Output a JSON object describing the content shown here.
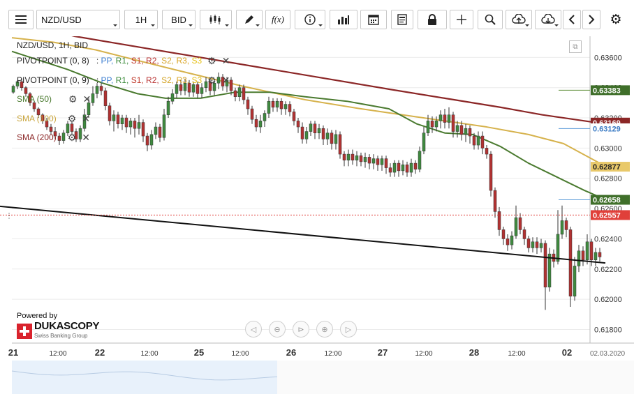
{
  "toolbar": {
    "instrument": "NZD/USD",
    "timeframe": "1H",
    "side": "BID",
    "fx_label": "f(x)"
  },
  "legend": {
    "title": "NZD/USD, 1H, BID",
    "pivot1_name": "PIVOTPOINT (0, 8)",
    "pivot2_name": "PIVOTPOINT (0, 9)",
    "pivot_sep": ":",
    "pivot_levels": [
      "PP,",
      "R1,",
      "S1,",
      "R2,",
      "S2,",
      "R3,",
      "S3"
    ],
    "sma50": "SMA (50)",
    "sma100": "SMA (100)",
    "sma200": "SMA (200)"
  },
  "branding": {
    "powered_by": "Powered by",
    "logo": "DUKASCOPY",
    "logo_sub": "Swiss Banking Group"
  },
  "colors": {
    "sma50": "#4a7a2f",
    "sma100": "#d6b24c",
    "sma200": "#8b2626",
    "bull": "#3f8a3f",
    "bear": "#b23232",
    "price": "#e0403a",
    "trend": "#111111",
    "blueline": "#5a9ad8"
  },
  "chart_data": {
    "type": "candlestick",
    "instrument": "NZD/USD",
    "timeframe": "1H",
    "side": "BID",
    "y_axis": {
      "ticks": [
        "0.63600",
        "0.63400",
        "0.63200",
        "0.63000",
        "0.62800",
        "0.62600",
        "0.62400",
        "0.62200",
        "0.62000",
        "0.61800"
      ],
      "ylim": [
        0.6171,
        0.6374
      ]
    },
    "x_axis": {
      "labels": [
        "21",
        "12:00",
        "22",
        "12:00",
        "25",
        "12:00",
        "26",
        "12:00",
        "27",
        "12:00",
        "28",
        "12:00",
        "02",
        "02.03.2020"
      ]
    },
    "price_tags": [
      {
        "label": "0.63383",
        "value": 0.63383,
        "series": "SMA / pivot level"
      },
      {
        "label": "0.63169",
        "value": 0.63169,
        "series": "SMA (200)"
      },
      {
        "label": "0.63129",
        "value": 0.63129,
        "series": "pivot"
      },
      {
        "label": "0.62877",
        "value": 0.62877,
        "series": "SMA (100)"
      },
      {
        "label": "0.62658",
        "value": 0.62658,
        "series": "SMA (50)"
      },
      {
        "label": "0.62557",
        "value": 0.62557,
        "series": "current price"
      }
    ],
    "sma200": [
      [
        0,
        0.6384
      ],
      [
        90,
        0.6374
      ],
      [
        180,
        0.6367
      ],
      [
        270,
        0.636
      ],
      [
        360,
        0.6353
      ],
      [
        450,
        0.6346
      ],
      [
        540,
        0.6339
      ],
      [
        620,
        0.6333
      ],
      [
        700,
        0.6327
      ],
      [
        760,
        0.6322
      ],
      [
        850,
        0.6316
      ]
    ],
    "sma100": [
      [
        0,
        0.6373
      ],
      [
        60,
        0.637
      ],
      [
        120,
        0.6365
      ],
      [
        180,
        0.6358
      ],
      [
        250,
        0.635
      ],
      [
        330,
        0.6341
      ],
      [
        420,
        0.6332
      ],
      [
        500,
        0.6326
      ],
      [
        560,
        0.6322
      ],
      [
        620,
        0.6318
      ],
      [
        680,
        0.6314
      ],
      [
        740,
        0.6309
      ],
      [
        790,
        0.6303
      ],
      [
        850,
        0.6288
      ]
    ],
    "sma50": [
      [
        0,
        0.6364
      ],
      [
        40,
        0.6358
      ],
      [
        80,
        0.6352
      ],
      [
        130,
        0.6343
      ],
      [
        180,
        0.6336
      ],
      [
        220,
        0.6333
      ],
      [
        270,
        0.6333
      ],
      [
        320,
        0.6337
      ],
      [
        370,
        0.6337
      ],
      [
        420,
        0.6334
      ],
      [
        480,
        0.6331
      ],
      [
        540,
        0.6326
      ],
      [
        580,
        0.6316
      ],
      [
        620,
        0.631
      ],
      [
        660,
        0.6309
      ],
      [
        700,
        0.6301
      ],
      [
        740,
        0.629
      ],
      [
        780,
        0.6281
      ],
      [
        820,
        0.6272
      ],
      [
        850,
        0.6266
      ]
    ],
    "trendline": [
      [
        0,
        0.62615
      ],
      [
        850,
        0.6224
      ]
    ],
    "current_price": 0.62557,
    "candles": [
      [
        0,
        0.6337,
        0.6341,
        0.6342,
        0.6336
      ],
      [
        6,
        0.6341,
        0.6344,
        0.6345,
        0.6339
      ],
      [
        12,
        0.6344,
        0.634,
        0.6346,
        0.6338
      ],
      [
        18,
        0.634,
        0.6336,
        0.6341,
        0.6334
      ],
      [
        24,
        0.6336,
        0.633,
        0.6337,
        0.6328
      ],
      [
        30,
        0.633,
        0.6326,
        0.6331,
        0.6324
      ],
      [
        36,
        0.6326,
        0.6322,
        0.6327,
        0.632
      ],
      [
        42,
        0.6322,
        0.6318,
        0.6323,
        0.6316
      ],
      [
        48,
        0.6318,
        0.6314,
        0.632,
        0.6312
      ],
      [
        54,
        0.6314,
        0.6311,
        0.6316,
        0.6309
      ],
      [
        60,
        0.6311,
        0.6308,
        0.6314,
        0.6306
      ],
      [
        66,
        0.6308,
        0.6305,
        0.631,
        0.6302
      ],
      [
        72,
        0.6305,
        0.631,
        0.6312,
        0.6303
      ],
      [
        78,
        0.631,
        0.6316,
        0.6318,
        0.6308
      ],
      [
        84,
        0.6316,
        0.6311,
        0.6318,
        0.6309
      ],
      [
        90,
        0.6311,
        0.6306,
        0.6313,
        0.6304
      ],
      [
        96,
        0.6306,
        0.6313,
        0.6315,
        0.6304
      ],
      [
        102,
        0.6313,
        0.6322,
        0.6326,
        0.6311
      ],
      [
        108,
        0.6322,
        0.633,
        0.6333,
        0.632
      ],
      [
        114,
        0.633,
        0.6336,
        0.6341,
        0.6328
      ],
      [
        120,
        0.6336,
        0.6341,
        0.6343,
        0.6333
      ],
      [
        126,
        0.6341,
        0.6338,
        0.6343,
        0.6335
      ],
      [
        132,
        0.6338,
        0.6328,
        0.634,
        0.6325
      ],
      [
        138,
        0.6328,
        0.6318,
        0.633,
        0.6315
      ],
      [
        144,
        0.6318,
        0.6322,
        0.6325,
        0.6311
      ],
      [
        150,
        0.6322,
        0.6316,
        0.6324,
        0.6313
      ],
      [
        156,
        0.6316,
        0.632,
        0.6322,
        0.6312
      ],
      [
        162,
        0.632,
        0.6314,
        0.6322,
        0.631
      ],
      [
        168,
        0.6314,
        0.6318,
        0.632,
        0.6309
      ],
      [
        174,
        0.6318,
        0.6313,
        0.632,
        0.6307
      ],
      [
        180,
        0.6313,
        0.6317,
        0.6322,
        0.6309
      ],
      [
        186,
        0.6317,
        0.6308,
        0.6319,
        0.6304
      ],
      [
        192,
        0.6308,
        0.6302,
        0.631,
        0.6298
      ],
      [
        198,
        0.6302,
        0.6309,
        0.6312,
        0.6299
      ],
      [
        204,
        0.6309,
        0.6314,
        0.6317,
        0.6306
      ],
      [
        210,
        0.6314,
        0.6307,
        0.6316,
        0.6304
      ],
      [
        216,
        0.6307,
        0.6322,
        0.6326,
        0.6305
      ],
      [
        222,
        0.6322,
        0.6331,
        0.6334,
        0.632
      ],
      [
        228,
        0.6331,
        0.6336,
        0.6339,
        0.6329
      ],
      [
        234,
        0.6336,
        0.6342,
        0.6344,
        0.6333
      ],
      [
        240,
        0.6342,
        0.6338,
        0.6345,
        0.6335
      ],
      [
        246,
        0.6338,
        0.6343,
        0.6346,
        0.6335
      ],
      [
        252,
        0.6343,
        0.6337,
        0.6345,
        0.6334
      ],
      [
        258,
        0.6337,
        0.6342,
        0.6344,
        0.6334
      ],
      [
        264,
        0.6342,
        0.6336,
        0.6344,
        0.6333
      ],
      [
        270,
        0.6336,
        0.634,
        0.6343,
        0.6333
      ],
      [
        276,
        0.634,
        0.6344,
        0.6347,
        0.6337
      ],
      [
        282,
        0.6344,
        0.6338,
        0.6346,
        0.6335
      ],
      [
        288,
        0.6338,
        0.6343,
        0.6346,
        0.6335
      ],
      [
        294,
        0.6343,
        0.6347,
        0.635,
        0.6339
      ],
      [
        300,
        0.6347,
        0.6341,
        0.6349,
        0.6338
      ],
      [
        306,
        0.6341,
        0.6345,
        0.6347,
        0.6337
      ],
      [
        312,
        0.6345,
        0.6338,
        0.6347,
        0.6335
      ],
      [
        318,
        0.6338,
        0.6334,
        0.634,
        0.6331
      ],
      [
        324,
        0.6334,
        0.634,
        0.6342,
        0.6331
      ],
      [
        330,
        0.634,
        0.6332,
        0.6342,
        0.6329
      ],
      [
        336,
        0.6332,
        0.6326,
        0.6334,
        0.6322
      ],
      [
        342,
        0.6326,
        0.6319,
        0.6328,
        0.6316
      ],
      [
        348,
        0.6319,
        0.6314,
        0.6322,
        0.6311
      ],
      [
        354,
        0.6314,
        0.6318,
        0.6322,
        0.631
      ],
      [
        360,
        0.6318,
        0.6323,
        0.6325,
        0.6314
      ],
      [
        366,
        0.6323,
        0.6331,
        0.6334,
        0.632
      ],
      [
        372,
        0.6331,
        0.6327,
        0.6333,
        0.6324
      ],
      [
        378,
        0.6327,
        0.6331,
        0.6333,
        0.6324
      ],
      [
        384,
        0.6331,
        0.6326,
        0.6333,
        0.6322
      ],
      [
        390,
        0.6326,
        0.6329,
        0.6331,
        0.6322
      ],
      [
        396,
        0.6329,
        0.6324,
        0.6331,
        0.6321
      ],
      [
        402,
        0.6324,
        0.6318,
        0.6326,
        0.6315
      ],
      [
        408,
        0.6318,
        0.6314,
        0.632,
        0.631
      ],
      [
        414,
        0.6314,
        0.6306,
        0.6317,
        0.6303
      ],
      [
        420,
        0.6306,
        0.6311,
        0.6314,
        0.6303
      ],
      [
        426,
        0.6311,
        0.6316,
        0.6318,
        0.6308
      ],
      [
        432,
        0.6316,
        0.631,
        0.6318,
        0.6306
      ],
      [
        438,
        0.631,
        0.6313,
        0.6316,
        0.6306
      ],
      [
        444,
        0.6313,
        0.6306,
        0.6315,
        0.6302
      ],
      [
        450,
        0.6306,
        0.631,
        0.6313,
        0.6302
      ],
      [
        456,
        0.631,
        0.6303,
        0.6312,
        0.6299
      ],
      [
        462,
        0.6303,
        0.6309,
        0.6312,
        0.6299
      ],
      [
        468,
        0.6309,
        0.6296,
        0.6311,
        0.6293
      ],
      [
        474,
        0.6296,
        0.6292,
        0.6298,
        0.6288
      ],
      [
        480,
        0.6292,
        0.6296,
        0.6299,
        0.6288
      ],
      [
        486,
        0.6296,
        0.6292,
        0.6299,
        0.6289
      ],
      [
        492,
        0.6292,
        0.6295,
        0.6298,
        0.6288
      ],
      [
        498,
        0.6295,
        0.6291,
        0.6297,
        0.6288
      ],
      [
        504,
        0.6291,
        0.6294,
        0.6297,
        0.6287
      ],
      [
        510,
        0.6294,
        0.629,
        0.6296,
        0.6286
      ],
      [
        516,
        0.629,
        0.6293,
        0.6296,
        0.6286
      ],
      [
        522,
        0.6293,
        0.6289,
        0.6295,
        0.6285
      ],
      [
        528,
        0.6289,
        0.6293,
        0.6295,
        0.6285
      ],
      [
        534,
        0.6293,
        0.6287,
        0.6295,
        0.6283
      ],
      [
        540,
        0.6287,
        0.6284,
        0.629,
        0.6281
      ],
      [
        546,
        0.6284,
        0.629,
        0.6292,
        0.6281
      ],
      [
        552,
        0.629,
        0.6285,
        0.6292,
        0.6281
      ],
      [
        558,
        0.6285,
        0.6289,
        0.6292,
        0.6282
      ],
      [
        564,
        0.6289,
        0.6284,
        0.6291,
        0.6281
      ],
      [
        570,
        0.6284,
        0.629,
        0.6293,
        0.6281
      ],
      [
        576,
        0.629,
        0.6286,
        0.6292,
        0.6283
      ],
      [
        582,
        0.6286,
        0.6298,
        0.6301,
        0.6284
      ],
      [
        588,
        0.6298,
        0.631,
        0.6314,
        0.6296
      ],
      [
        594,
        0.631,
        0.6318,
        0.6322,
        0.6308
      ],
      [
        600,
        0.6318,
        0.6314,
        0.6321,
        0.631
      ],
      [
        606,
        0.6314,
        0.6318,
        0.6321,
        0.6311
      ],
      [
        612,
        0.6318,
        0.6322,
        0.6325,
        0.6313
      ],
      [
        618,
        0.6322,
        0.6317,
        0.6326,
        0.6313
      ],
      [
        624,
        0.6317,
        0.6322,
        0.6327,
        0.6313
      ],
      [
        630,
        0.6322,
        0.6311,
        0.6324,
        0.6307
      ],
      [
        636,
        0.6311,
        0.6315,
        0.6318,
        0.6307
      ],
      [
        642,
        0.6315,
        0.6309,
        0.6318,
        0.6305
      ],
      [
        648,
        0.6309,
        0.6313,
        0.6316,
        0.6304
      ],
      [
        654,
        0.6313,
        0.6308,
        0.6315,
        0.6303
      ],
      [
        660,
        0.6308,
        0.6302,
        0.631,
        0.6299
      ],
      [
        666,
        0.6302,
        0.6308,
        0.6311,
        0.6299
      ],
      [
        672,
        0.6308,
        0.63,
        0.6311,
        0.6296
      ],
      [
        678,
        0.63,
        0.6296,
        0.6302,
        0.6293
      ],
      [
        684,
        0.6296,
        0.6272,
        0.6298,
        0.6268
      ],
      [
        690,
        0.6272,
        0.6258,
        0.6274,
        0.6254
      ],
      [
        696,
        0.6258,
        0.6246,
        0.6261,
        0.6242
      ],
      [
        702,
        0.6246,
        0.624,
        0.6248,
        0.6236
      ],
      [
        708,
        0.624,
        0.6236,
        0.6243,
        0.6232
      ],
      [
        714,
        0.6236,
        0.6242,
        0.6245,
        0.6233
      ],
      [
        720,
        0.6242,
        0.6254,
        0.6262,
        0.624
      ],
      [
        726,
        0.6254,
        0.6246,
        0.6257,
        0.6243
      ],
      [
        732,
        0.6246,
        0.624,
        0.6248,
        0.6236
      ],
      [
        738,
        0.624,
        0.6234,
        0.6242,
        0.6231
      ],
      [
        744,
        0.6234,
        0.6238,
        0.6241,
        0.6231
      ],
      [
        750,
        0.6238,
        0.6234,
        0.6241,
        0.623
      ],
      [
        756,
        0.6234,
        0.6237,
        0.624,
        0.6231
      ],
      [
        762,
        0.6237,
        0.6208,
        0.6239,
        0.6193
      ],
      [
        768,
        0.6208,
        0.623,
        0.6234,
        0.6205
      ],
      [
        774,
        0.623,
        0.6225,
        0.6233,
        0.6221
      ],
      [
        780,
        0.6225,
        0.6243,
        0.6259,
        0.6223
      ],
      [
        786,
        0.6243,
        0.6252,
        0.6262,
        0.624
      ],
      [
        792,
        0.6252,
        0.6246,
        0.6254,
        0.6241
      ],
      [
        798,
        0.6246,
        0.6202,
        0.6248,
        0.6195
      ],
      [
        804,
        0.6202,
        0.6222,
        0.6228,
        0.6199
      ],
      [
        810,
        0.6222,
        0.6232,
        0.6236,
        0.6218
      ],
      [
        816,
        0.6232,
        0.6226,
        0.6235,
        0.6222
      ],
      [
        822,
        0.6226,
        0.6238,
        0.6243,
        0.6223
      ],
      [
        828,
        0.6238,
        0.6226,
        0.624,
        0.6222
      ],
      [
        834,
        0.6226,
        0.6231,
        0.6234,
        0.6222
      ],
      [
        840,
        0.6231,
        0.6228,
        0.6234,
        0.6225
      ]
    ]
  }
}
